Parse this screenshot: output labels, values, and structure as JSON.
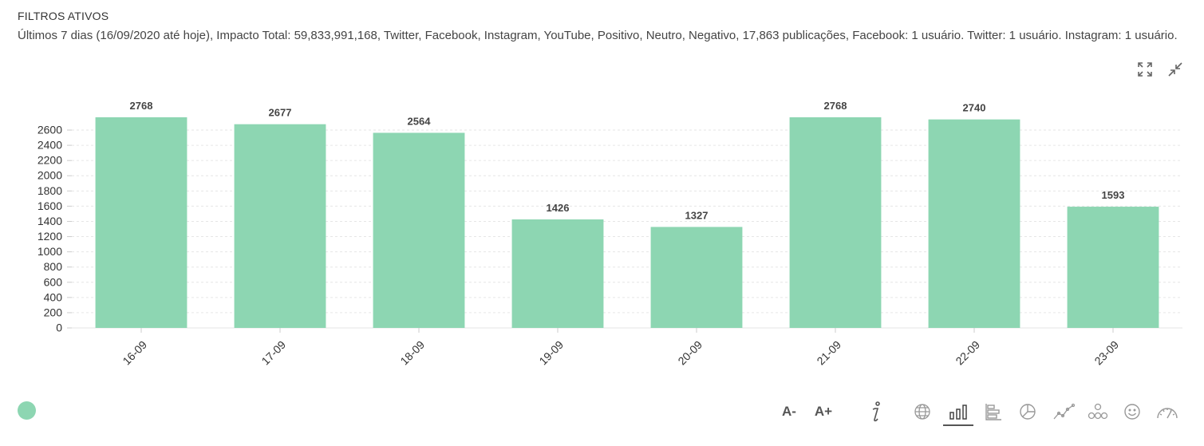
{
  "header": {
    "title": "FILTROS ATIVOS",
    "filters_text": "Últimos 7 dias (16/09/2020 até hoje), Impacto Total: 59,833,991,168, Twitter, Facebook, Instagram, YouTube, Positivo, Neutro, Negativo, 17,863 publicações, Facebook: 1 usuário. Twitter: 1 usuário. Instagram: 1 usuário."
  },
  "window_controls": [
    "expand-icon",
    "collapse-icon"
  ],
  "chart_data": {
    "type": "bar",
    "categories": [
      "16-09",
      "17-09",
      "18-09",
      "19-09",
      "20-09",
      "21-09",
      "22-09",
      "23-09"
    ],
    "values": [
      2768,
      2677,
      2564,
      1426,
      1327,
      2768,
      2740,
      1593
    ],
    "y_ticks": [
      0,
      200,
      400,
      600,
      800,
      1000,
      1200,
      1400,
      1600,
      1800,
      2000,
      2200,
      2400,
      2600
    ],
    "ylim": [
      0,
      2768
    ],
    "grid": true,
    "bar_color": "#8dd6b2",
    "data_labels": true,
    "legend": "none"
  },
  "toolbar": {
    "font_decrease": "A-",
    "font_increase": "A+",
    "icons": [
      "info-icon",
      "globe-icon",
      "bar-chart-icon",
      "horizontal-bar-chart-icon",
      "pie-chart-icon",
      "line-chart-icon",
      "network-icon",
      "sentiment-icon",
      "gauge-icon"
    ],
    "active": "bar-chart-icon"
  },
  "colors": {
    "accent": "#8dd6b2",
    "text": "#333333",
    "grid": "#e6e6e6"
  }
}
